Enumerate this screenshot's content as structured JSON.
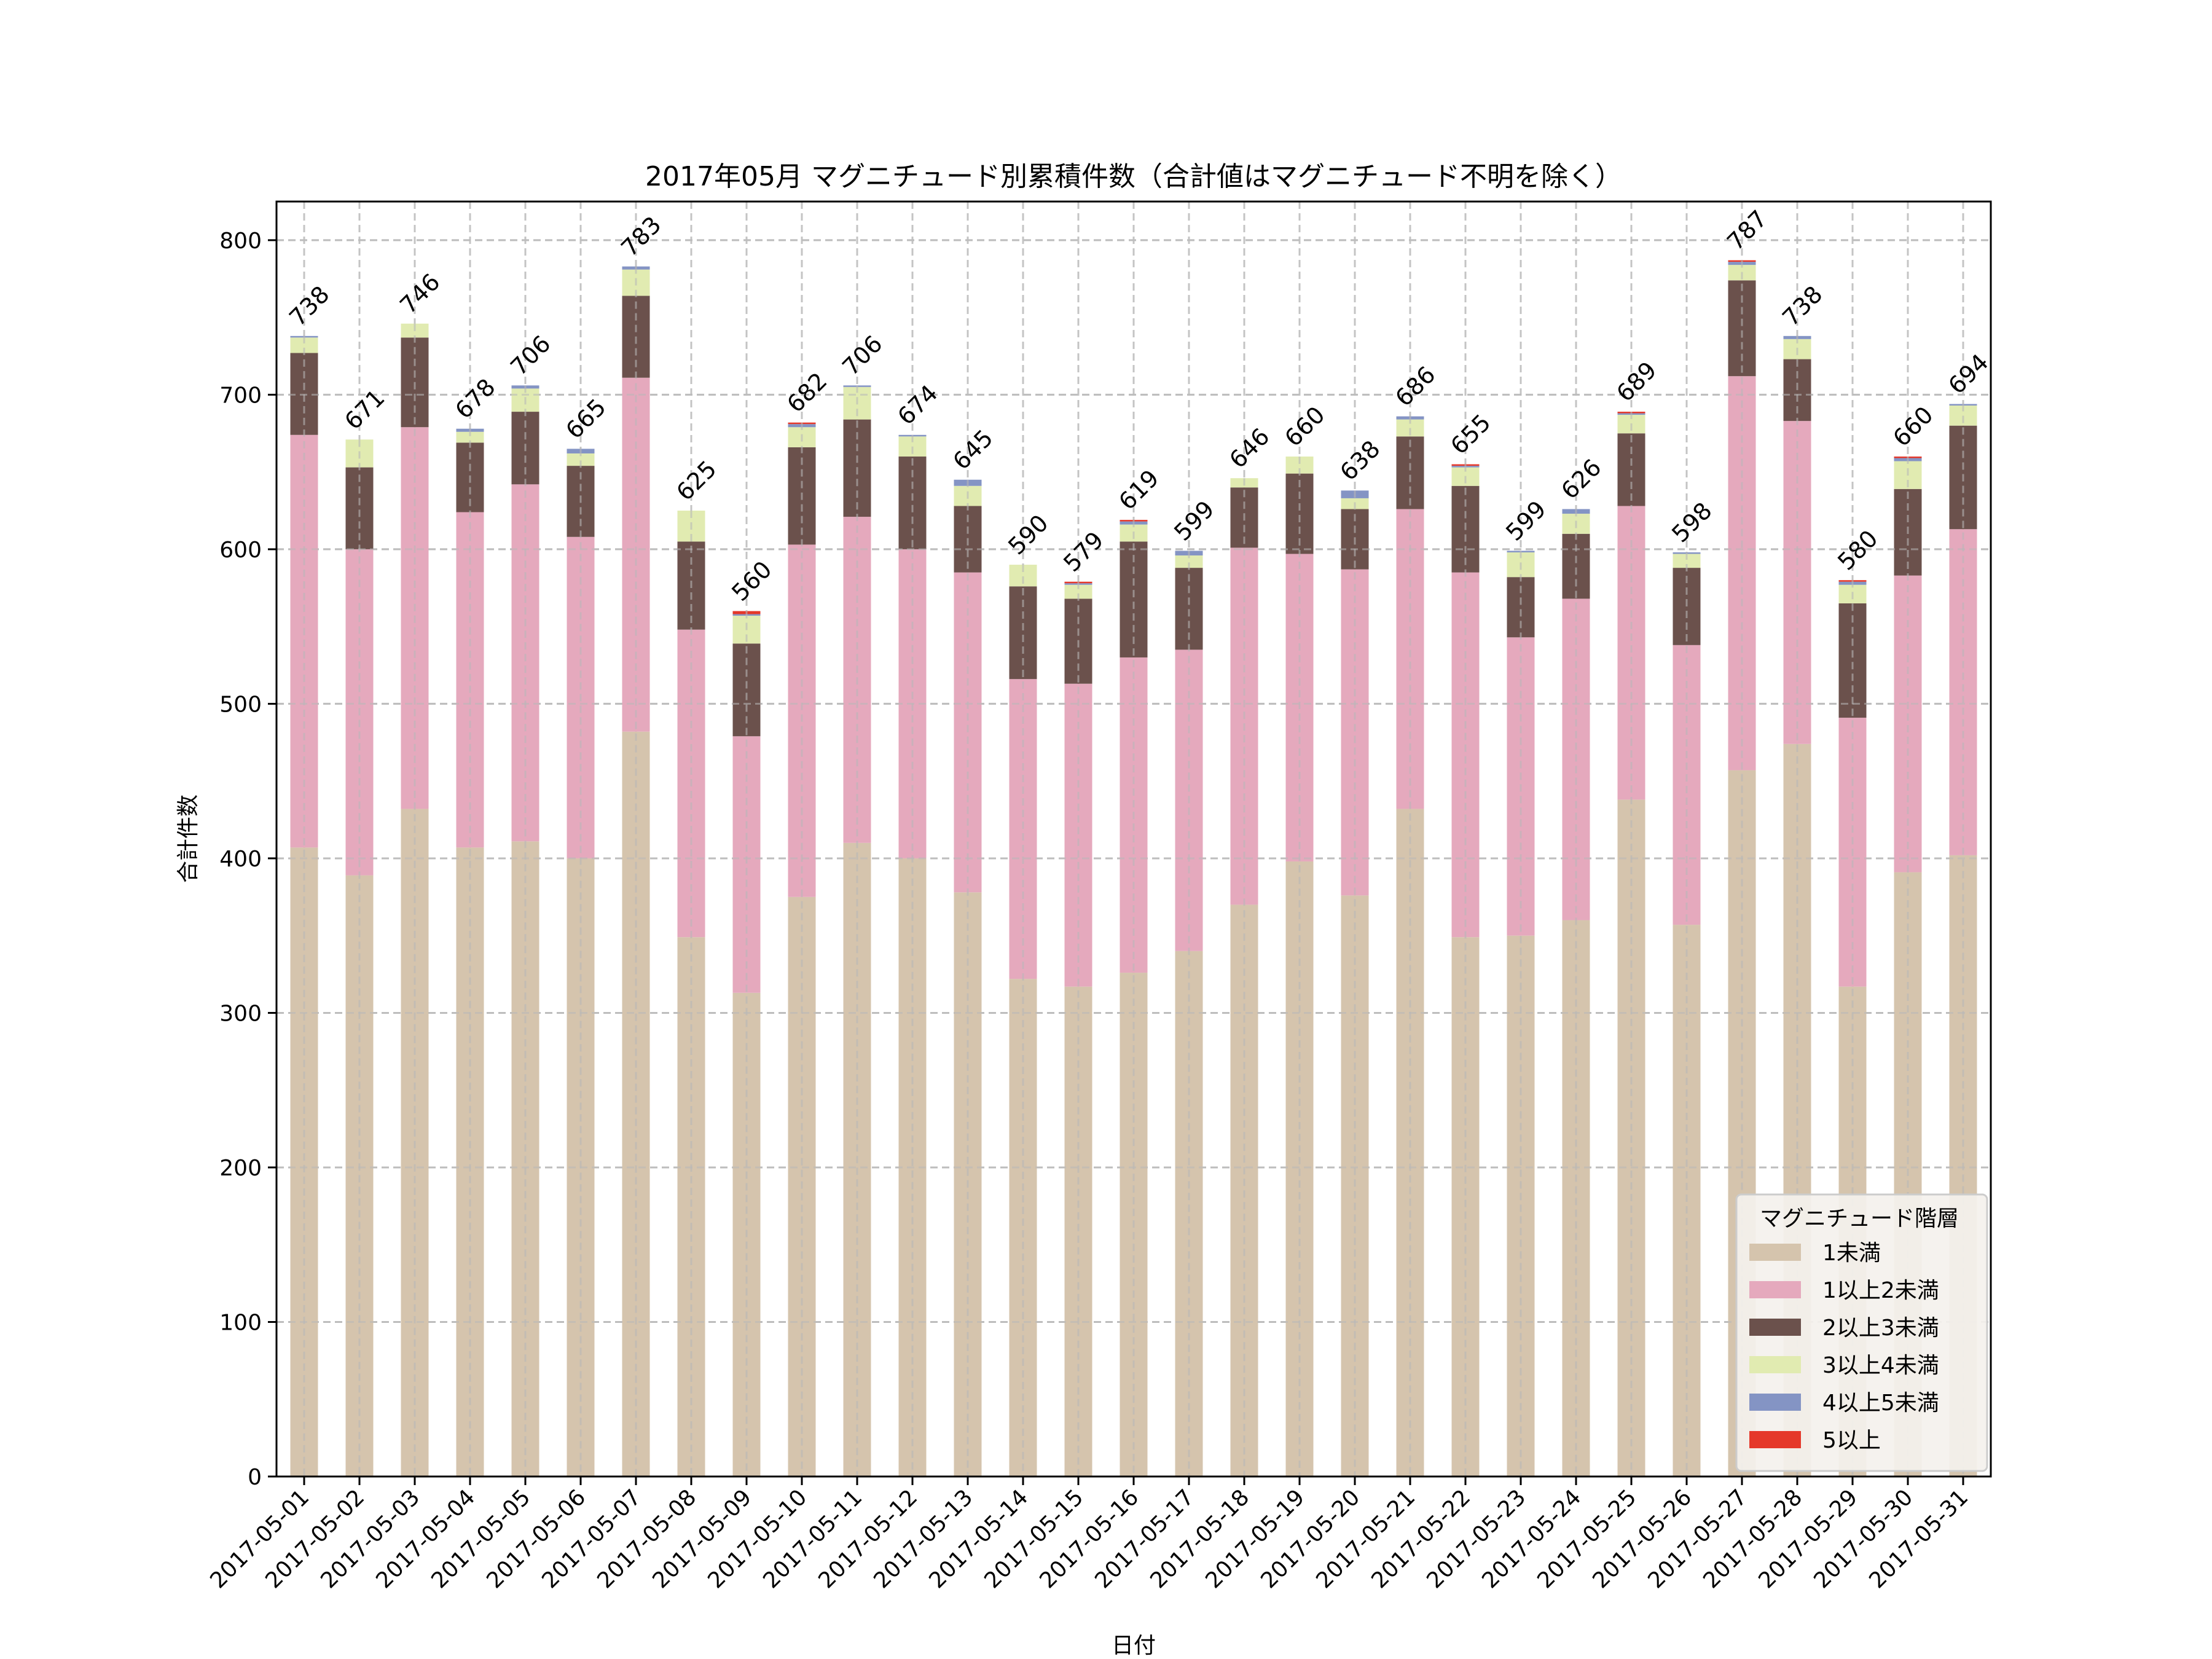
{
  "chart_data": {
    "type": "bar",
    "stacked": true,
    "title": "2017年05月 マグニチュード別累積件数（合計値はマグニチュード不明を除く）",
    "xlabel": "日付",
    "ylabel": "合計件数",
    "ylim": [
      0,
      825
    ],
    "yticks": [
      0,
      100,
      200,
      300,
      400,
      500,
      600,
      700,
      800
    ],
    "grid": true,
    "legend": {
      "title": "マグニチュード階層",
      "position": "bottom-right"
    },
    "categories": [
      "2017-05-01",
      "2017-05-02",
      "2017-05-03",
      "2017-05-04",
      "2017-05-05",
      "2017-05-06",
      "2017-05-07",
      "2017-05-08",
      "2017-05-09",
      "2017-05-10",
      "2017-05-11",
      "2017-05-12",
      "2017-05-13",
      "2017-05-14",
      "2017-05-15",
      "2017-05-16",
      "2017-05-17",
      "2017-05-18",
      "2017-05-19",
      "2017-05-20",
      "2017-05-21",
      "2017-05-22",
      "2017-05-23",
      "2017-05-24",
      "2017-05-25",
      "2017-05-26",
      "2017-05-27",
      "2017-05-28",
      "2017-05-29",
      "2017-05-30",
      "2017-05-31"
    ],
    "series": [
      {
        "name": "1未満",
        "color": "#d5c4ad",
        "values": [
          407,
          389,
          432,
          407,
          411,
          400,
          482,
          349,
          313,
          375,
          410,
          400,
          378,
          322,
          317,
          326,
          340,
          370,
          398,
          376,
          432,
          349,
          350,
          360,
          438,
          357,
          457,
          474,
          317,
          391,
          402
        ]
      },
      {
        "name": "1以上2未満",
        "color": "#e5a9bd",
        "values": [
          267,
          211,
          247,
          217,
          231,
          208,
          229,
          199,
          166,
          228,
          211,
          200,
          207,
          194,
          196,
          204,
          195,
          231,
          199,
          211,
          194,
          236,
          193,
          208,
          190,
          181,
          255,
          209,
          174,
          192,
          211
        ]
      },
      {
        "name": "2以上3未満",
        "color": "#6b514c",
        "values": [
          53,
          53,
          58,
          45,
          47,
          46,
          53,
          57,
          60,
          63,
          63,
          60,
          43,
          60,
          55,
          75,
          53,
          39,
          52,
          39,
          47,
          56,
          39,
          42,
          47,
          50,
          62,
          40,
          74,
          56,
          67
        ]
      },
      {
        "name": "3以上4未満",
        "color": "#e1ebb1",
        "values": [
          10,
          18,
          9,
          7,
          15,
          8,
          17,
          20,
          18,
          13,
          21,
          13,
          13,
          14,
          9,
          11,
          8,
          6,
          11,
          7,
          11,
          12,
          16,
          13,
          12,
          9,
          10,
          13,
          12,
          18,
          13
        ]
      },
      {
        "name": "4以上5未満",
        "color": "#8494c4",
        "values": [
          1,
          0,
          0,
          2,
          2,
          3,
          2,
          0,
          1,
          2,
          1,
          1,
          4,
          0,
          1,
          2,
          3,
          0,
          0,
          5,
          2,
          1,
          1,
          3,
          1,
          1,
          2,
          2,
          2,
          2,
          1
        ]
      },
      {
        "name": "5以上",
        "color": "#e5382a",
        "values": [
          0,
          0,
          0,
          0,
          0,
          0,
          0,
          0,
          2,
          1,
          0,
          0,
          0,
          0,
          1,
          1,
          0,
          0,
          0,
          0,
          0,
          1,
          0,
          0,
          1,
          0,
          1,
          0,
          1,
          1,
          0
        ]
      }
    ],
    "totals": [
      738,
      671,
      746,
      678,
      706,
      665,
      783,
      625,
      560,
      682,
      706,
      674,
      645,
      590,
      579,
      619,
      599,
      646,
      660,
      638,
      686,
      655,
      599,
      626,
      689,
      598,
      787,
      738,
      580,
      660,
      694
    ]
  }
}
